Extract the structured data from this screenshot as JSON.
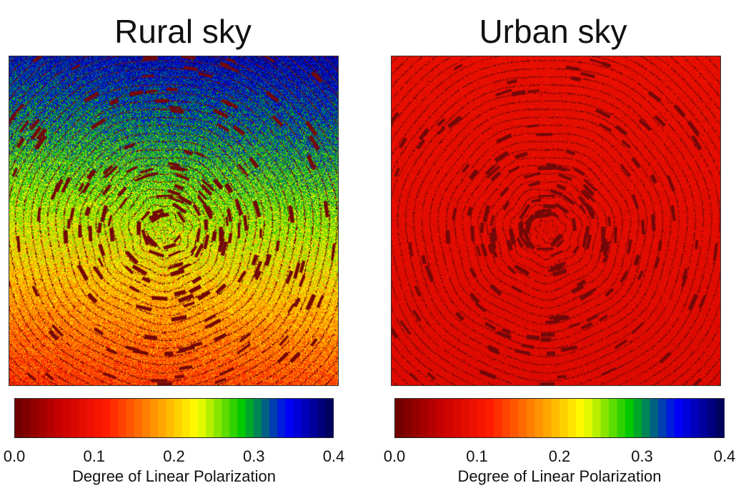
{
  "chart_data": [
    {
      "type": "heatmap",
      "title": "Rural sky",
      "xlabel": "Degree of Linear Polarization",
      "colorbar_range": [
        0.0,
        0.4
      ],
      "colorbar_ticks": [
        "0.0",
        "0.1",
        "0.2",
        "0.3",
        "0.4"
      ],
      "colormap": [
        "#6b0000",
        "#c80000",
        "#ff1a00",
        "#ff8c00",
        "#ffff00",
        "#00c800",
        "#0000ff",
        "#000050"
      ],
      "field": {
        "bottom_value": 0.13,
        "top_value": 0.36,
        "gradient": "bottom-to-top"
      },
      "grid": false
    },
    {
      "type": "heatmap",
      "title": "Urban sky",
      "xlabel": "Degree of Linear Polarization",
      "colorbar_range": [
        0.0,
        0.4
      ],
      "colorbar_ticks": [
        "0.0",
        "0.1",
        "0.2",
        "0.3",
        "0.4"
      ],
      "colormap": [
        "#6b0000",
        "#c80000",
        "#ff1a00",
        "#ff8c00",
        "#ffff00",
        "#00c800",
        "#0000ff",
        "#000050"
      ],
      "field": {
        "bottom_value": 0.08,
        "top_value": 0.09,
        "gradient": "uniform"
      },
      "grid": false
    }
  ]
}
